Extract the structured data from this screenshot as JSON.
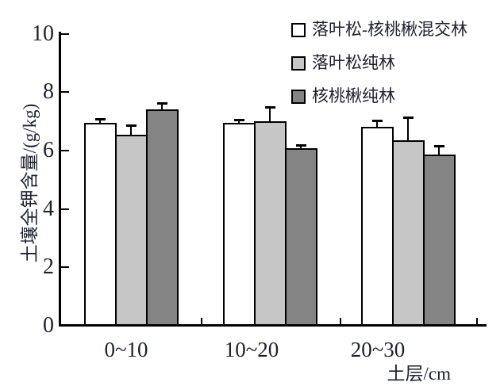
{
  "figure": {
    "background": "#ffffff",
    "axis_color": "#000000",
    "text_color": "#1d2130"
  },
  "chart_data": {
    "type": "bar",
    "title": "",
    "ylabel": "土壤全钾含量/(g/kg)",
    "xlabel": "土层/cm",
    "ylim": [
      0,
      10
    ],
    "yticks": [
      0,
      2,
      4,
      6,
      8,
      10
    ],
    "categories": [
      "0~10",
      "10~20",
      "20~30"
    ],
    "series": [
      {
        "name": "落叶松-核桃楸混交林",
        "color": "#ffffff",
        "values": [
          6.95,
          6.95,
          6.8
        ],
        "errors": [
          0.12,
          0.08,
          0.18
        ]
      },
      {
        "name": "落叶松纯林",
        "color": "#c6c6c6",
        "values": [
          6.55,
          7.0,
          6.35
        ],
        "errors": [
          0.3,
          0.45,
          0.75
        ]
      },
      {
        "name": "核桃楸纯林",
        "color": "#848484",
        "values": [
          7.4,
          6.08,
          5.85
        ],
        "errors": [
          0.2,
          0.07,
          0.28
        ]
      }
    ],
    "legend_position": "top-right",
    "grid": false,
    "error_bars": true
  }
}
